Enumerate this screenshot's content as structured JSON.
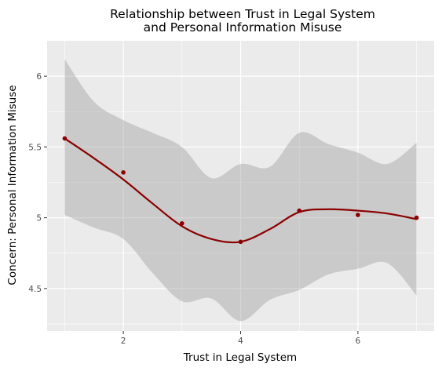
{
  "chart_data": {
    "type": "line",
    "title": [
      "Relationship between Trust in Legal System",
      "and Personal Information Misuse"
    ],
    "xlabel": "Trust in Legal System",
    "ylabel": "Concern: Personal Information Misuse",
    "xlim": [
      0.7,
      7.3
    ],
    "ylim": [
      4.2,
      6.25
    ],
    "x_ticks": [
      2,
      4,
      6
    ],
    "x_tick_labels": [
      "2",
      "4",
      "6"
    ],
    "y_ticks": [
      4.5,
      5,
      5.5,
      6
    ],
    "y_tick_labels": [
      "4.5",
      "5",
      "5.5",
      "6"
    ],
    "grid": true,
    "colors": {
      "panel": "#ebebeb",
      "grid": "#ffffff",
      "points": "#8b0000",
      "smooth_line": "#8b0000",
      "ribbon": "#999999"
    },
    "series": [
      {
        "kind": "points",
        "x": [
          1,
          2,
          3,
          4,
          5,
          6,
          7
        ],
        "y": [
          5.56,
          5.32,
          4.96,
          4.83,
          5.05,
          5.02,
          5.0
        ]
      },
      {
        "kind": "smooth",
        "x": [
          1,
          1.5,
          2,
          2.5,
          3,
          3.5,
          4,
          4.5,
          5,
          5.5,
          6,
          6.5,
          7
        ],
        "y": [
          5.56,
          5.42,
          5.27,
          5.1,
          4.94,
          4.85,
          4.83,
          4.92,
          5.04,
          5.06,
          5.05,
          5.03,
          4.99
        ],
        "band_lower": [
          5.02,
          4.93,
          4.85,
          4.61,
          4.41,
          4.43,
          4.27,
          4.42,
          4.49,
          4.6,
          4.64,
          4.68,
          4.45
        ],
        "band_upper": [
          6.12,
          5.82,
          5.69,
          5.6,
          5.5,
          5.28,
          5.38,
          5.36,
          5.6,
          5.52,
          5.46,
          5.38,
          5.53
        ]
      }
    ]
  }
}
